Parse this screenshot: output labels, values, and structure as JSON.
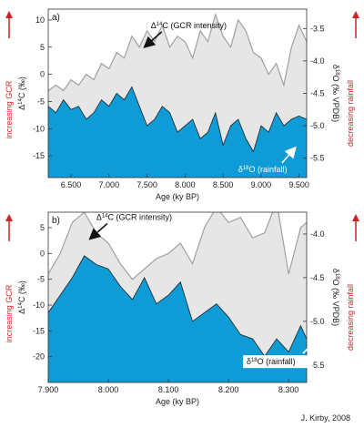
{
  "credit": "J. Kirby, 2008",
  "chart_data": [
    {
      "type": "area",
      "panel_label": "a)",
      "xlabel": "Age (ky BP)",
      "ylabel_left": "Δ14C (‰)",
      "ylabel_right": "δ18O (‰ VPDB)",
      "left_red_label": "increasing GCR",
      "right_red_label": "decreasing rainfall",
      "xlim": [
        6.2,
        9.6
      ],
      "ylim_left": [
        -19,
        12
      ],
      "ylim_right": [
        -5.8,
        -3.2
      ],
      "right_axis_inverted": true,
      "x_ticks": [
        "6.500",
        "7.000",
        "7.500",
        "8.000",
        "8.500",
        "9.000",
        "9.500"
      ],
      "y_ticks_left": [
        "10",
        "5",
        "0",
        "-5",
        "-10",
        "-15"
      ],
      "y_ticks_right": [
        "-3.5",
        "-4.0",
        "-4.5",
        "-5.0",
        "-5.5"
      ],
      "annotations": [
        {
          "text": "Δ14C (GCR intensity)",
          "x": 7.55,
          "y": 8.5
        },
        {
          "text": "δ18O (rainfall)",
          "x": 8.7,
          "y": -18.0
        }
      ],
      "series": [
        {
          "name": "Δ14C (GCR intensity)",
          "axis": "left",
          "color": "#a0a0a0",
          "fill": "#e6e6e6",
          "x": [
            6.2,
            6.3,
            6.4,
            6.5,
            6.6,
            6.7,
            6.8,
            6.9,
            7.0,
            7.1,
            7.2,
            7.3,
            7.4,
            7.5,
            7.6,
            7.7,
            7.8,
            7.9,
            8.0,
            8.1,
            8.2,
            8.3,
            8.4,
            8.5,
            8.6,
            8.7,
            8.8,
            8.9,
            9.0,
            9.1,
            9.2,
            9.3,
            9.4,
            9.5,
            9.6
          ],
          "values": [
            -3,
            -2,
            -3,
            -1,
            -2,
            0,
            -1,
            2,
            1,
            4,
            3,
            7,
            5,
            8,
            6,
            9,
            5,
            7,
            6,
            3,
            8,
            6,
            11,
            7,
            5,
            10,
            8,
            4,
            3,
            0,
            2,
            -2,
            5,
            9,
            6
          ]
        },
        {
          "name": "δ18O (rainfall)",
          "axis": "right",
          "color": "#222222",
          "fill": "#0e9bd6",
          "x": [
            6.2,
            6.3,
            6.4,
            6.5,
            6.6,
            6.7,
            6.8,
            6.9,
            7.0,
            7.1,
            7.2,
            7.3,
            7.4,
            7.5,
            7.6,
            7.7,
            7.8,
            7.9,
            8.0,
            8.1,
            8.2,
            8.3,
            8.4,
            8.5,
            8.6,
            8.7,
            8.8,
            8.9,
            9.0,
            9.1,
            9.2,
            9.3,
            9.4,
            9.5,
            9.6
          ],
          "values": [
            -4.7,
            -4.8,
            -4.6,
            -4.75,
            -4.7,
            -4.9,
            -4.8,
            -4.6,
            -4.7,
            -4.5,
            -4.6,
            -4.4,
            -4.7,
            -5.0,
            -4.9,
            -4.7,
            -4.8,
            -5.1,
            -5.0,
            -4.9,
            -5.2,
            -5.1,
            -4.8,
            -5.3,
            -5.0,
            -4.9,
            -5.2,
            -5.4,
            -5.0,
            -5.1,
            -4.8,
            -5.0,
            -4.9,
            -4.85,
            -4.9
          ]
        }
      ]
    },
    {
      "type": "area",
      "panel_label": "b)",
      "xlabel": "Age (ky BP)",
      "ylabel_left": "Δ14C (‰)",
      "ylabel_right": "δ18O (‰ VPDB)",
      "left_red_label": "increasing GCR",
      "right_red_label": "decreasing rainfall",
      "xlim": [
        7.9,
        8.33
      ],
      "ylim_left": [
        -25,
        8
      ],
      "ylim_right": [
        -5.7,
        -3.75
      ],
      "right_axis_inverted": true,
      "x_ticks": [
        "7.900",
        "8.000",
        "8.100",
        "8.200",
        "8.300"
      ],
      "y_ticks_left": [
        "5",
        "0",
        "-5",
        "-10",
        "-15",
        "-20"
      ],
      "y_ticks_right": [
        "-4.0",
        "-4.5",
        "-5.0",
        "-5.5"
      ],
      "annotations": [
        {
          "text": "Δ14C (GCR intensity)",
          "x": 7.98,
          "y": 6.5
        },
        {
          "text": "δ18O (rainfall)",
          "x": 8.23,
          "y": -21.5
        }
      ],
      "series": [
        {
          "name": "Δ14C (GCR intensity)",
          "axis": "left",
          "color": "#a0a0a0",
          "fill": "#e6e6e6",
          "x": [
            7.9,
            7.92,
            7.94,
            7.96,
            7.98,
            8.0,
            8.02,
            8.04,
            8.06,
            8.08,
            8.1,
            8.12,
            8.14,
            8.16,
            8.18,
            8.2,
            8.22,
            8.24,
            8.26,
            8.28,
            8.3,
            8.32,
            8.33
          ],
          "values": [
            -4,
            0,
            6,
            8,
            4,
            2,
            -2,
            -5,
            -3,
            -1,
            0,
            2,
            -2,
            5,
            9,
            6,
            7,
            3,
            4,
            10,
            -4,
            5,
            6
          ]
        },
        {
          "name": "δ18O (rainfall)",
          "axis": "right",
          "color": "#222222",
          "fill": "#0e9bd6",
          "x": [
            7.9,
            7.92,
            7.94,
            7.96,
            7.98,
            8.0,
            8.02,
            8.04,
            8.06,
            8.08,
            8.1,
            8.12,
            8.14,
            8.16,
            8.18,
            8.2,
            8.22,
            8.24,
            8.26,
            8.28,
            8.3,
            8.32,
            8.33
          ],
          "values": [
            -4.9,
            -4.7,
            -4.5,
            -4.25,
            -4.35,
            -4.4,
            -4.6,
            -4.75,
            -4.5,
            -4.8,
            -4.7,
            -4.55,
            -5.0,
            -4.9,
            -4.8,
            -4.95,
            -5.15,
            -5.2,
            -5.4,
            -5.2,
            -5.35,
            -5.05,
            -5.2
          ]
        }
      ]
    }
  ]
}
